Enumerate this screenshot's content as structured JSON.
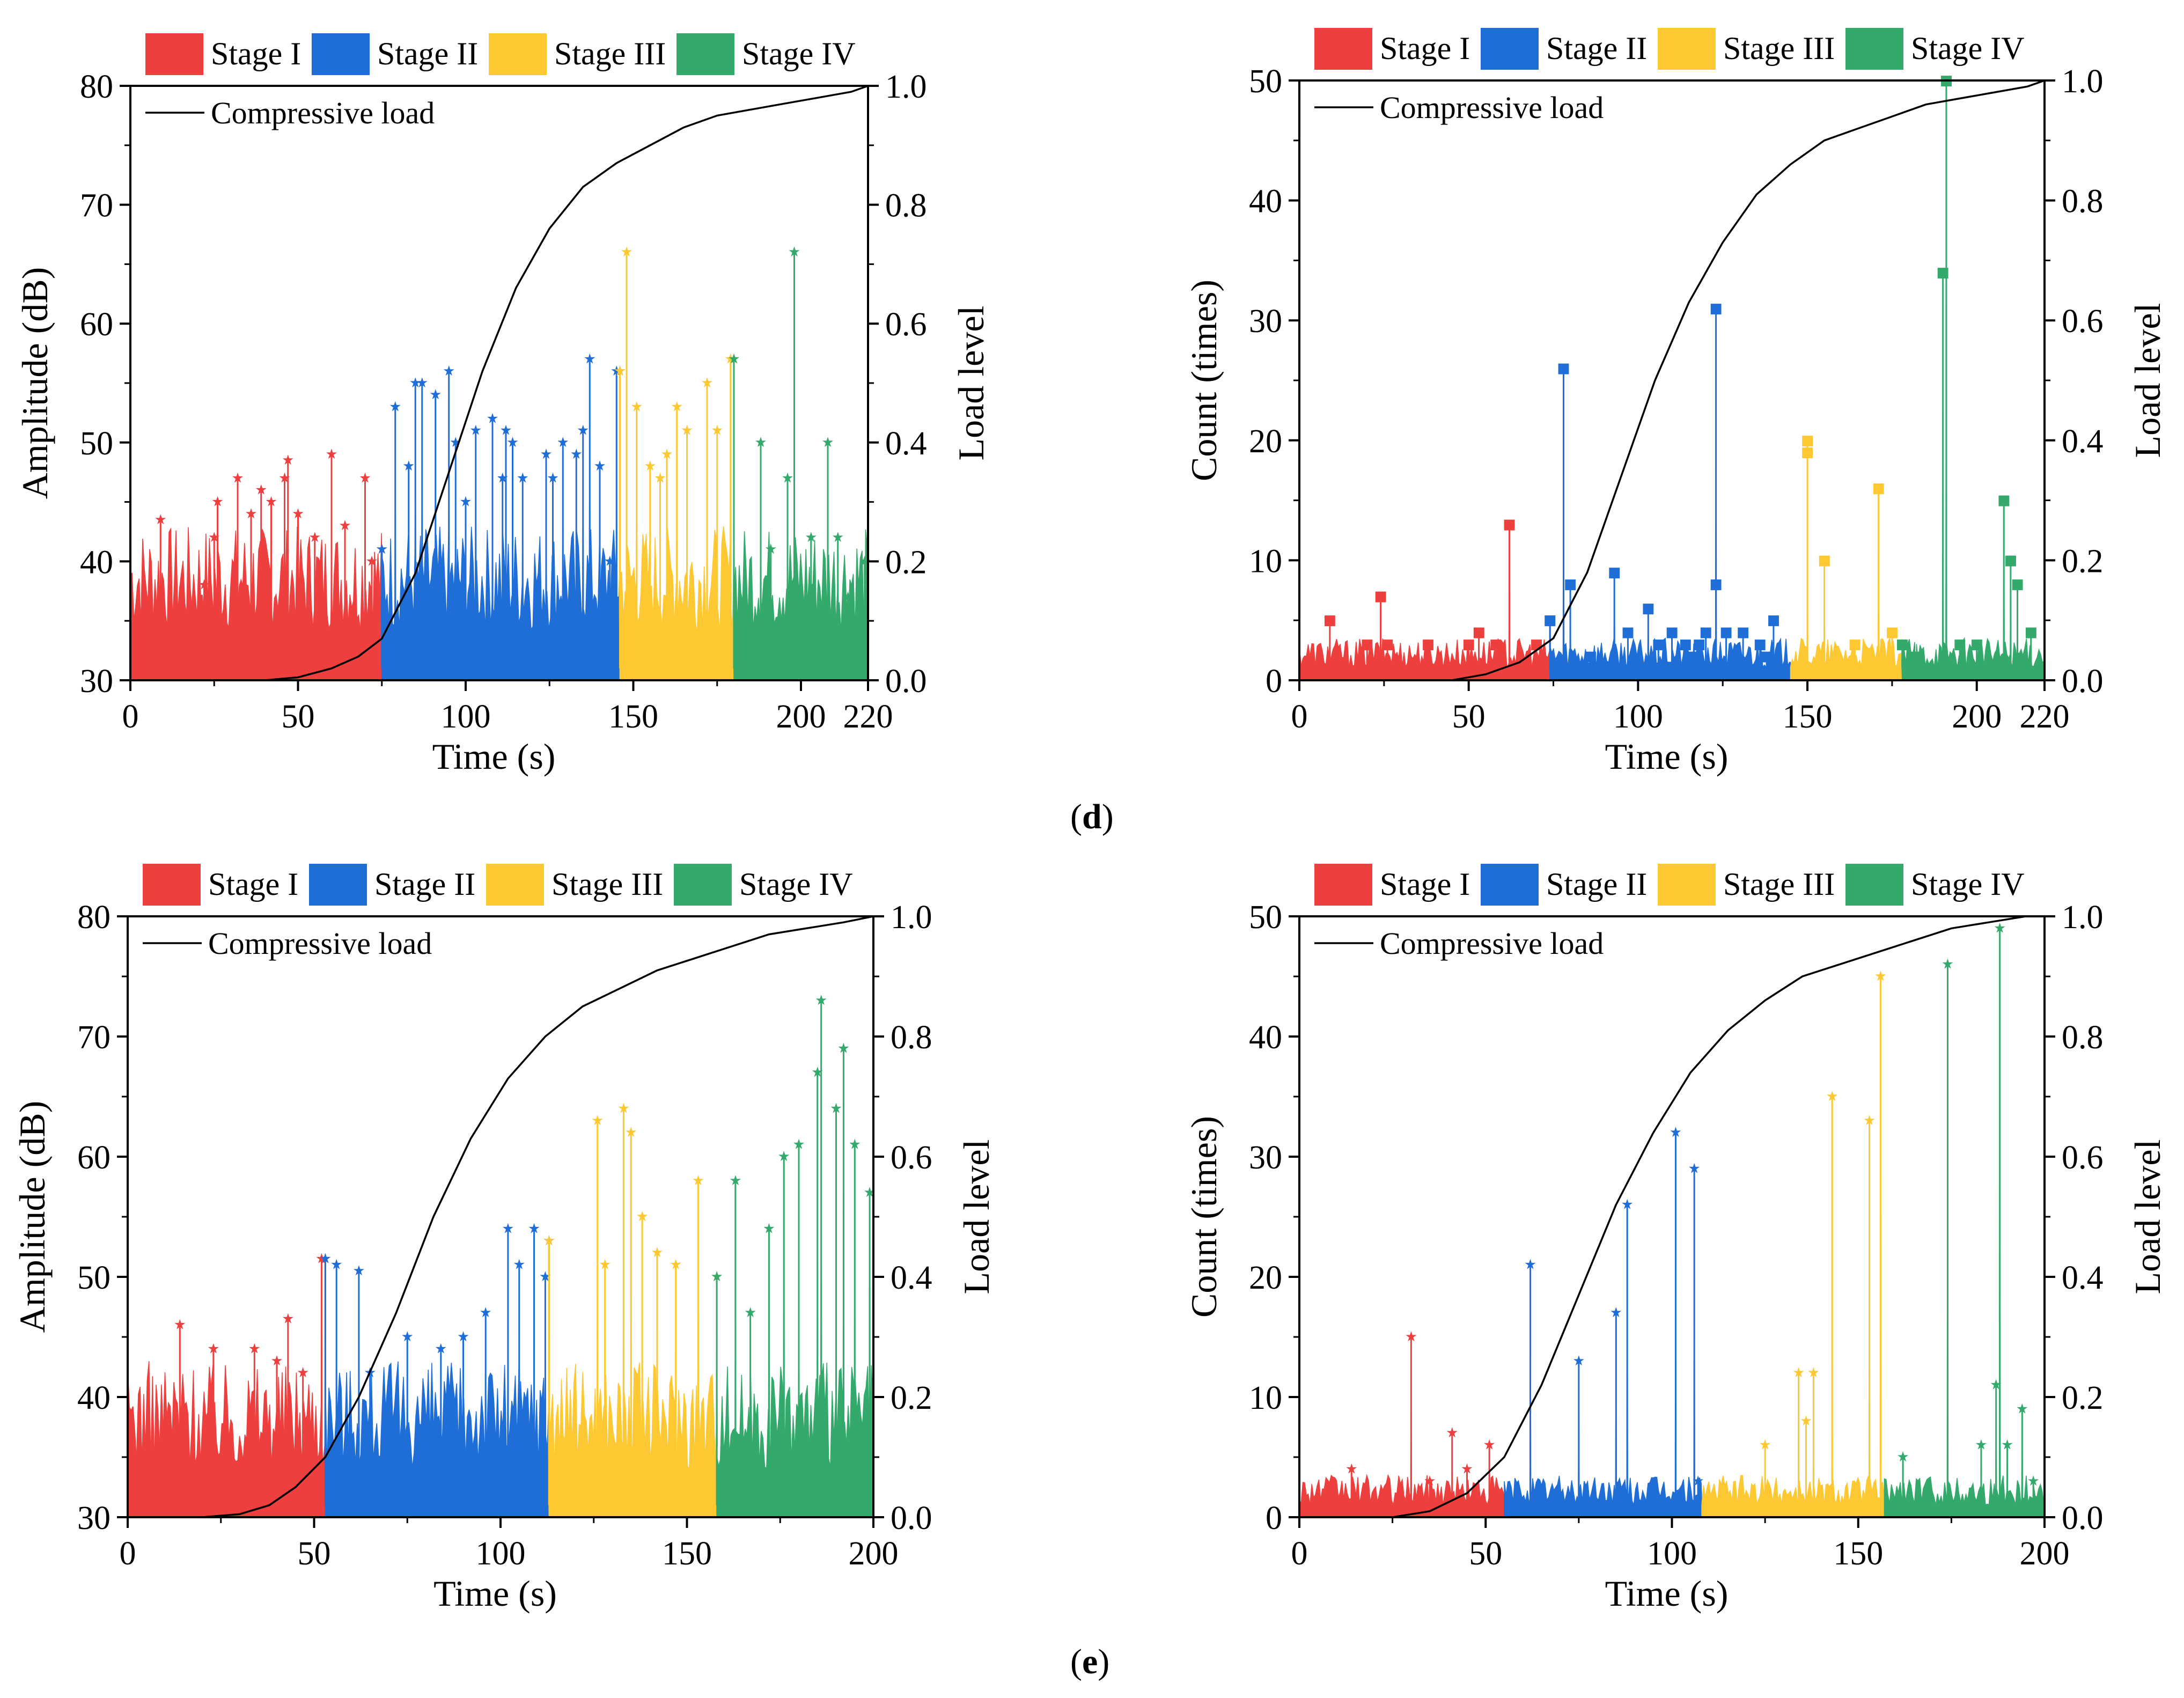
{
  "figure": {
    "row_labels": [
      {
        "open": "(",
        "letter": "d",
        "close": ")"
      },
      {
        "open": "(",
        "letter": "e",
        "close": ")"
      }
    ]
  },
  "colors": {
    "stage1": "#ee3f3f",
    "stage2": "#1f6ed8",
    "stage3": "#fdc832",
    "stage4": "#33a96b",
    "load": "#000000"
  },
  "chart_data": [
    {
      "id": "d-amplitude",
      "type": "area",
      "title": "",
      "xlabel": "Time (s)",
      "ylabel": "Amplitude (dB)",
      "y2label": "Load level",
      "xlim": [
        0,
        220
      ],
      "ylim": [
        30,
        80
      ],
      "y2lim": [
        0.0,
        1.0
      ],
      "xticks": [
        "0",
        "50",
        "100",
        "150",
        "200",
        "220"
      ],
      "xtick_values": [
        0,
        50,
        100,
        150,
        200,
        220
      ],
      "yticks": [
        "30",
        "40",
        "50",
        "60",
        "70",
        "80"
      ],
      "y2ticks": [
        "0.0",
        "0.2",
        "0.4",
        "0.6",
        "0.8",
        "1.0"
      ],
      "legend": [
        "Stage I",
        "Stage II",
        "Stage III",
        "Stage IV"
      ],
      "line_legend": "Compressive load",
      "stage_bounds": [
        0,
        75,
        146,
        180,
        220
      ],
      "peaks": [
        [
          9,
          43.5
        ],
        [
          22,
          38
        ],
        [
          25,
          42
        ],
        [
          26,
          45
        ],
        [
          32,
          47
        ],
        [
          36,
          44
        ],
        [
          39,
          46
        ],
        [
          42,
          45
        ],
        [
          46,
          47
        ],
        [
          47,
          48.5
        ],
        [
          50,
          44
        ],
        [
          55,
          42
        ],
        [
          60,
          49
        ],
        [
          64,
          43
        ],
        [
          70,
          47
        ],
        [
          72,
          40
        ],
        [
          75,
          41
        ],
        [
          79,
          53
        ],
        [
          83,
          48
        ],
        [
          85,
          55
        ],
        [
          87,
          55
        ],
        [
          91,
          54
        ],
        [
          95,
          56
        ],
        [
          97,
          50
        ],
        [
          100,
          45
        ],
        [
          103,
          51
        ],
        [
          108,
          52
        ],
        [
          111,
          47
        ],
        [
          112,
          51
        ],
        [
          114,
          50
        ],
        [
          117,
          47
        ],
        [
          124,
          49
        ],
        [
          126,
          47
        ],
        [
          129,
          50
        ],
        [
          133,
          49
        ],
        [
          135,
          51
        ],
        [
          137,
          57
        ],
        [
          140,
          48
        ],
        [
          143,
          40
        ],
        [
          145,
          56
        ],
        [
          146,
          56
        ],
        [
          148,
          66
        ],
        [
          151,
          53
        ],
        [
          155,
          48
        ],
        [
          158,
          47
        ],
        [
          160,
          49
        ],
        [
          163,
          53
        ],
        [
          166,
          51
        ],
        [
          172,
          55
        ],
        [
          175,
          51
        ],
        [
          179,
          57
        ],
        [
          180,
          57
        ],
        [
          188,
          50
        ],
        [
          191,
          41
        ],
        [
          196,
          47
        ],
        [
          198,
          66
        ],
        [
          203,
          42
        ],
        [
          208,
          50
        ],
        [
          211,
          42
        ],
        [
          214,
          37
        ],
        [
          219,
          40
        ]
      ],
      "load": [
        [
          0,
          0
        ],
        [
          25,
          0
        ],
        [
          40,
          0
        ],
        [
          50,
          0.005
        ],
        [
          60,
          0.02
        ],
        [
          68,
          0.04
        ],
        [
          75,
          0.07
        ],
        [
          85,
          0.18
        ],
        [
          95,
          0.35
        ],
        [
          105,
          0.52
        ],
        [
          115,
          0.66
        ],
        [
          125,
          0.76
        ],
        [
          135,
          0.83
        ],
        [
          145,
          0.87
        ],
        [
          155,
          0.9
        ],
        [
          165,
          0.93
        ],
        [
          175,
          0.95
        ],
        [
          185,
          0.96
        ],
        [
          195,
          0.97
        ],
        [
          205,
          0.98
        ],
        [
          215,
          0.99
        ],
        [
          220,
          1.0
        ]
      ]
    },
    {
      "id": "d-count",
      "type": "area",
      "title": "",
      "xlabel": "Time (s)",
      "ylabel": "Count (times)",
      "y2label": "Load level",
      "xlim": [
        0,
        220
      ],
      "ylim": [
        0,
        50
      ],
      "y2lim": [
        0.0,
        1.0
      ],
      "xticks": [
        "0",
        "50",
        "100",
        "150",
        "200",
        "220"
      ],
      "xtick_values": [
        0,
        50,
        100,
        150,
        200,
        220
      ],
      "yticks": [
        "0",
        "10",
        "20",
        "30",
        "40",
        "50"
      ],
      "y2ticks": [
        "0.0",
        "0.2",
        "0.4",
        "0.6",
        "0.8",
        "1.0"
      ],
      "legend": [
        "Stage I",
        "Stage II",
        "Stage III",
        "Stage IV"
      ],
      "line_legend": "Compressive load",
      "stage_bounds": [
        0,
        74,
        145,
        178,
        220
      ],
      "peaks": [
        [
          9,
          5
        ],
        [
          20,
          3
        ],
        [
          24,
          7
        ],
        [
          26,
          3
        ],
        [
          38,
          3
        ],
        [
          50,
          3
        ],
        [
          53,
          4
        ],
        [
          58,
          3
        ],
        [
          62,
          13
        ],
        [
          70,
          3
        ],
        [
          74,
          5
        ],
        [
          78,
          26
        ],
        [
          80,
          8
        ],
        [
          86,
          2
        ],
        [
          93,
          9
        ],
        [
          97,
          4
        ],
        [
          103,
          6
        ],
        [
          106,
          3
        ],
        [
          110,
          4
        ],
        [
          114,
          3
        ],
        [
          116,
          2
        ],
        [
          118,
          3
        ],
        [
          120,
          4
        ],
        [
          123,
          31
        ],
        [
          123,
          8
        ],
        [
          126,
          4
        ],
        [
          131,
          4
        ],
        [
          136,
          3
        ],
        [
          138,
          2
        ],
        [
          140,
          5
        ],
        [
          150,
          20
        ],
        [
          150,
          19
        ],
        [
          155,
          10
        ],
        [
          164,
          3
        ],
        [
          171,
          16
        ],
        [
          175,
          4
        ],
        [
          178,
          3
        ],
        [
          182,
          2
        ],
        [
          190,
          34
        ],
        [
          191,
          50
        ],
        [
          195,
          3
        ],
        [
          200,
          3
        ],
        [
          208,
          15
        ],
        [
          210,
          10
        ],
        [
          212,
          8
        ],
        [
          216,
          4
        ]
      ],
      "load": [
        [
          0,
          0
        ],
        [
          30,
          0
        ],
        [
          45,
          0
        ],
        [
          55,
          0.01
        ],
        [
          65,
          0.03
        ],
        [
          75,
          0.07
        ],
        [
          85,
          0.18
        ],
        [
          95,
          0.34
        ],
        [
          105,
          0.5
        ],
        [
          115,
          0.63
        ],
        [
          125,
          0.73
        ],
        [
          135,
          0.81
        ],
        [
          145,
          0.86
        ],
        [
          155,
          0.9
        ],
        [
          165,
          0.92
        ],
        [
          175,
          0.94
        ],
        [
          185,
          0.96
        ],
        [
          195,
          0.97
        ],
        [
          205,
          0.98
        ],
        [
          215,
          0.99
        ],
        [
          220,
          1.0
        ]
      ]
    },
    {
      "id": "e-amplitude",
      "type": "area",
      "title": "",
      "xlabel": "Time (s)",
      "ylabel": "Amplitude (dB)",
      "y2label": "Load level",
      "xlim": [
        0,
        200
      ],
      "ylim": [
        30,
        80
      ],
      "y2lim": [
        0.0,
        1.0
      ],
      "xticks": [
        "0",
        "50",
        "100",
        "150",
        "200"
      ],
      "xtick_values": [
        0,
        50,
        100,
        150,
        200
      ],
      "yticks": [
        "30",
        "40",
        "50",
        "60",
        "70",
        "80"
      ],
      "y2ticks": [
        "0.0",
        "0.2",
        "0.4",
        "0.6",
        "0.8",
        "1.0"
      ],
      "legend": [
        "Stage I",
        "Stage II",
        "Stage III",
        "Stage IV"
      ],
      "line_legend": "Compressive load",
      "stage_bounds": [
        0,
        53,
        113,
        158,
        200
      ],
      "peaks": [
        [
          14,
          46
        ],
        [
          23,
          44
        ],
        [
          34,
          44
        ],
        [
          40,
          43
        ],
        [
          43,
          46.5
        ],
        [
          47,
          42
        ],
        [
          52,
          51.5
        ],
        [
          53,
          51.5
        ],
        [
          56,
          51
        ],
        [
          62,
          50.5
        ],
        [
          65,
          42
        ],
        [
          75,
          45
        ],
        [
          84,
          44
        ],
        [
          90,
          45
        ],
        [
          96,
          47
        ],
        [
          102,
          54
        ],
        [
          105,
          51
        ],
        [
          109,
          54
        ],
        [
          112,
          50
        ],
        [
          113,
          53
        ],
        [
          126,
          63
        ],
        [
          128,
          51
        ],
        [
          133,
          64
        ],
        [
          135,
          62
        ],
        [
          138,
          55
        ],
        [
          142,
          52
        ],
        [
          147,
          51
        ],
        [
          153,
          58
        ],
        [
          158,
          50
        ],
        [
          163,
          58
        ],
        [
          167,
          47
        ],
        [
          172,
          54
        ],
        [
          176,
          60
        ],
        [
          180,
          61
        ],
        [
          185,
          67
        ],
        [
          186,
          73
        ],
        [
          190,
          64
        ],
        [
          192,
          69
        ],
        [
          195,
          61
        ],
        [
          199,
          57
        ]
      ],
      "load": [
        [
          0,
          0
        ],
        [
          20,
          0
        ],
        [
          30,
          0.005
        ],
        [
          38,
          0.02
        ],
        [
          45,
          0.05
        ],
        [
          53,
          0.1
        ],
        [
          62,
          0.2
        ],
        [
          72,
          0.34
        ],
        [
          82,
          0.5
        ],
        [
          92,
          0.63
        ],
        [
          102,
          0.73
        ],
        [
          112,
          0.8
        ],
        [
          122,
          0.85
        ],
        [
          132,
          0.88
        ],
        [
          142,
          0.91
        ],
        [
          152,
          0.93
        ],
        [
          162,
          0.95
        ],
        [
          172,
          0.97
        ],
        [
          182,
          0.98
        ],
        [
          192,
          0.99
        ],
        [
          200,
          1.0
        ]
      ]
    },
    {
      "id": "e-count",
      "type": "area",
      "title": "",
      "xlabel": "Time (s)",
      "ylabel": "Count (times)",
      "y2label": "Load level",
      "xlim": [
        0,
        200
      ],
      "ylim": [
        0,
        50
      ],
      "y2lim": [
        0.0,
        1.0
      ],
      "xticks": [
        "0",
        "50",
        "100",
        "150",
        "200"
      ],
      "xtick_values": [
        0,
        50,
        100,
        150,
        200
      ],
      "yticks": [
        "0",
        "10",
        "20",
        "30",
        "40",
        "50"
      ],
      "y2ticks": [
        "0.0",
        "0.2",
        "0.4",
        "0.6",
        "0.8",
        "1.0"
      ],
      "legend": [
        "Stage I",
        "Stage II",
        "Stage III",
        "Stage IV"
      ],
      "line_legend": "Compressive load",
      "stage_bounds": [
        0,
        55,
        108,
        157,
        200
      ],
      "peaks": [
        [
          14,
          4
        ],
        [
          30,
          15
        ],
        [
          35,
          3
        ],
        [
          41,
          7
        ],
        [
          45,
          4
        ],
        [
          51,
          6
        ],
        [
          62,
          21
        ],
        [
          75,
          13
        ],
        [
          85,
          17
        ],
        [
          88,
          26
        ],
        [
          101,
          32
        ],
        [
          106,
          29
        ],
        [
          107,
          3
        ],
        [
          125,
          6
        ],
        [
          134,
          12
        ],
        [
          136,
          8
        ],
        [
          138,
          12
        ],
        [
          143,
          35
        ],
        [
          153,
          33
        ],
        [
          156,
          45
        ],
        [
          162,
          5
        ],
        [
          174,
          46
        ],
        [
          183,
          6
        ],
        [
          187,
          11
        ],
        [
          188,
          49
        ],
        [
          190,
          6
        ],
        [
          194,
          9
        ],
        [
          197,
          3
        ]
      ],
      "load": [
        [
          0,
          0
        ],
        [
          25,
          0
        ],
        [
          35,
          0.01
        ],
        [
          45,
          0.04
        ],
        [
          55,
          0.1
        ],
        [
          65,
          0.22
        ],
        [
          75,
          0.37
        ],
        [
          85,
          0.52
        ],
        [
          95,
          0.64
        ],
        [
          105,
          0.74
        ],
        [
          115,
          0.81
        ],
        [
          125,
          0.86
        ],
        [
          135,
          0.9
        ],
        [
          145,
          0.92
        ],
        [
          155,
          0.94
        ],
        [
          165,
          0.96
        ],
        [
          175,
          0.98
        ],
        [
          185,
          0.99
        ],
        [
          195,
          1.0
        ],
        [
          200,
          1.0
        ]
      ]
    }
  ]
}
